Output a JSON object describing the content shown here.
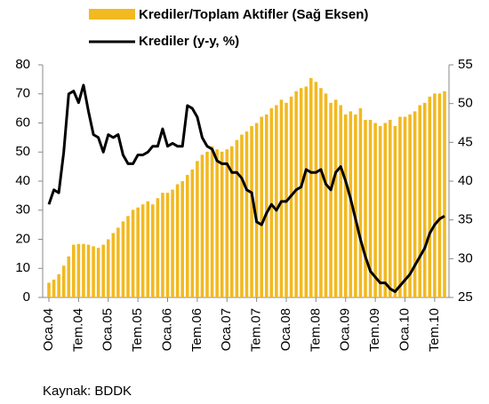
{
  "chart_data": {
    "type": "combo",
    "categories": [
      "Oca.04",
      null,
      null,
      null,
      null,
      null,
      "Tem.04",
      null,
      null,
      null,
      null,
      null,
      "Oca.05",
      null,
      null,
      null,
      null,
      null,
      "Tem.05",
      null,
      null,
      null,
      null,
      null,
      "Oca.06",
      null,
      null,
      null,
      null,
      null,
      "Tem.06",
      null,
      null,
      null,
      null,
      null,
      "Oca.07",
      null,
      null,
      null,
      null,
      null,
      "Tem.07",
      null,
      null,
      null,
      null,
      null,
      "Oca.08",
      null,
      null,
      null,
      null,
      null,
      "Tem.08",
      null,
      null,
      null,
      null,
      null,
      "Oca.09",
      null,
      null,
      null,
      null,
      null,
      "Tem.09",
      null,
      null,
      null,
      null,
      null,
      "Oca.10",
      null,
      null,
      null,
      null,
      null,
      "Tem.10",
      null,
      null
    ],
    "series": [
      {
        "name": "Krediler/Toplam Aktifler (Sağ Eksen)",
        "type": "bar",
        "axis": "y2",
        "color": "#f2b920",
        "values": [
          26.9,
          27.3,
          28.0,
          29.1,
          30.3,
          31.8,
          31.9,
          31.9,
          31.8,
          31.6,
          31.4,
          31.8,
          32.5,
          33.3,
          34.0,
          34.8,
          35.5,
          36.3,
          36.6,
          37.0,
          37.4,
          37.0,
          37.8,
          38.5,
          38.5,
          38.9,
          39.6,
          40.0,
          40.8,
          41.5,
          42.6,
          43.4,
          43.8,
          44.5,
          44.1,
          43.8,
          44.1,
          44.5,
          45.3,
          46.0,
          46.4,
          47.1,
          47.5,
          48.3,
          48.6,
          49.4,
          49.8,
          50.5,
          50.1,
          50.9,
          51.6,
          52.0,
          52.2,
          53.3,
          52.8,
          52.0,
          51.3,
          50.1,
          50.5,
          49.8,
          48.6,
          49.0,
          48.6,
          49.4,
          47.9,
          47.9,
          47.5,
          47.1,
          47.5,
          47.9,
          47.1,
          48.3,
          48.3,
          48.6,
          49.0,
          49.8,
          50.1,
          50.9,
          51.3,
          51.3,
          51.6
        ]
      },
      {
        "name": "Krediler (y-y, %)",
        "type": "line",
        "color": "#000000",
        "values": [
          32,
          37,
          36,
          50,
          70,
          71,
          67,
          73,
          64,
          56,
          55,
          50,
          56,
          55,
          56,
          49,
          46,
          46,
          49,
          49,
          50,
          52,
          52,
          58,
          52,
          53,
          52,
          52,
          66,
          65,
          62,
          55,
          52,
          51,
          47,
          46,
          46,
          43,
          43,
          41,
          37,
          36,
          26,
          25,
          29,
          32,
          30,
          33,
          33,
          35,
          37,
          38,
          44,
          43,
          43,
          44,
          39,
          37,
          43,
          45,
          40,
          34,
          27,
          20,
          14,
          9,
          7,
          5,
          5,
          3,
          2,
          4,
          6,
          8,
          11,
          14,
          17,
          22,
          25,
          27,
          28
        ]
      }
    ],
    "ylim": [
      0,
      80
    ],
    "yticks": [
      0,
      10,
      20,
      30,
      40,
      50,
      60,
      70,
      80
    ],
    "y2lim": [
      25,
      55
    ],
    "y2ticks": [
      25,
      30,
      35,
      40,
      45,
      50,
      55
    ],
    "source": "Kaynak: BDDK"
  }
}
